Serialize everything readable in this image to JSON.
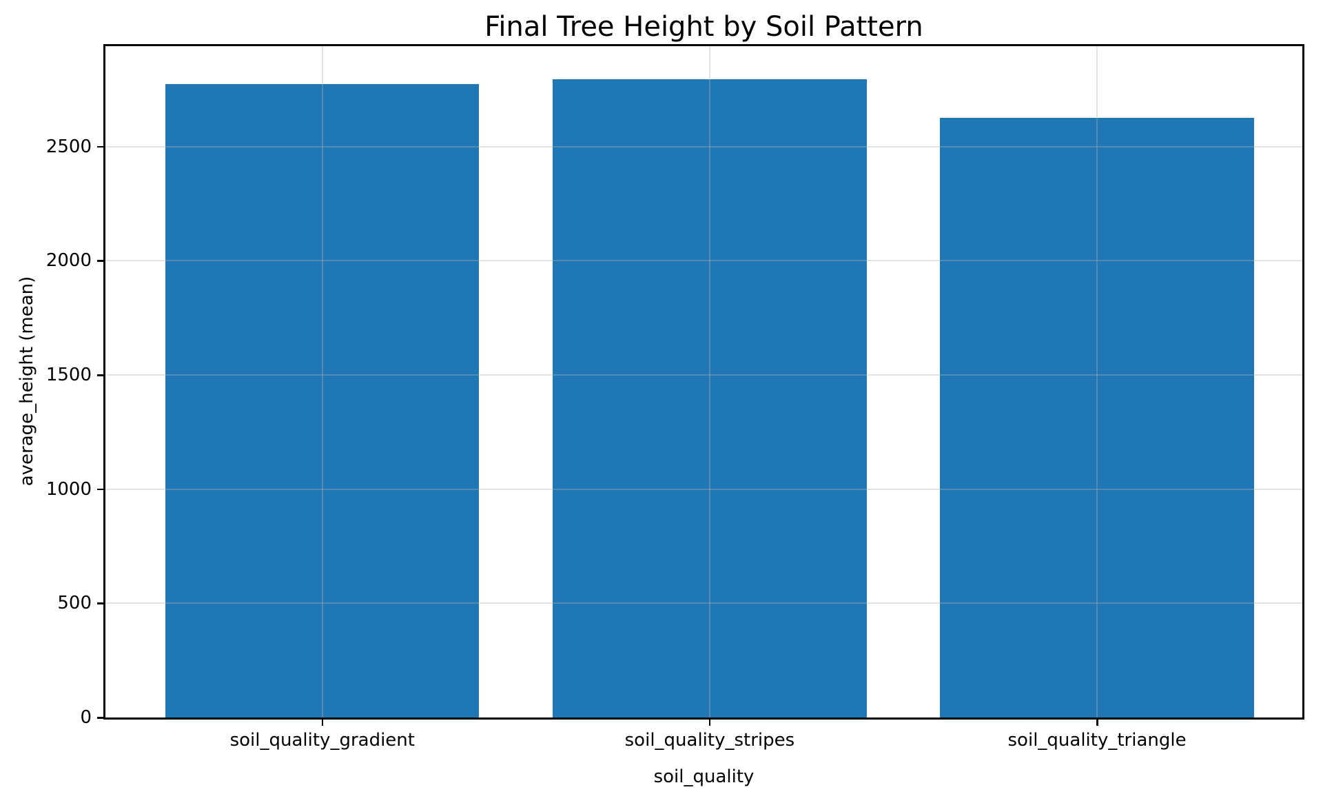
{
  "chart_data": {
    "type": "bar",
    "title": "Final Tree Height by Soil Pattern",
    "xlabel": "soil_quality",
    "ylabel": "average_height (mean)",
    "categories": [
      "soil_quality_gradient",
      "soil_quality_stripes",
      "soil_quality_triangle"
    ],
    "values": [
      2775,
      2795,
      2625
    ],
    "yticks": [
      0,
      500,
      1000,
      1500,
      2000,
      2500
    ],
    "ylim": [
      0,
      2940
    ],
    "xlim": [
      -0.56,
      2.53
    ],
    "bar_width_fraction": 0.81,
    "bar_color": "#1f77b4",
    "grid": "on",
    "grid_color": "#b0b0b0",
    "legend_position": "none"
  }
}
